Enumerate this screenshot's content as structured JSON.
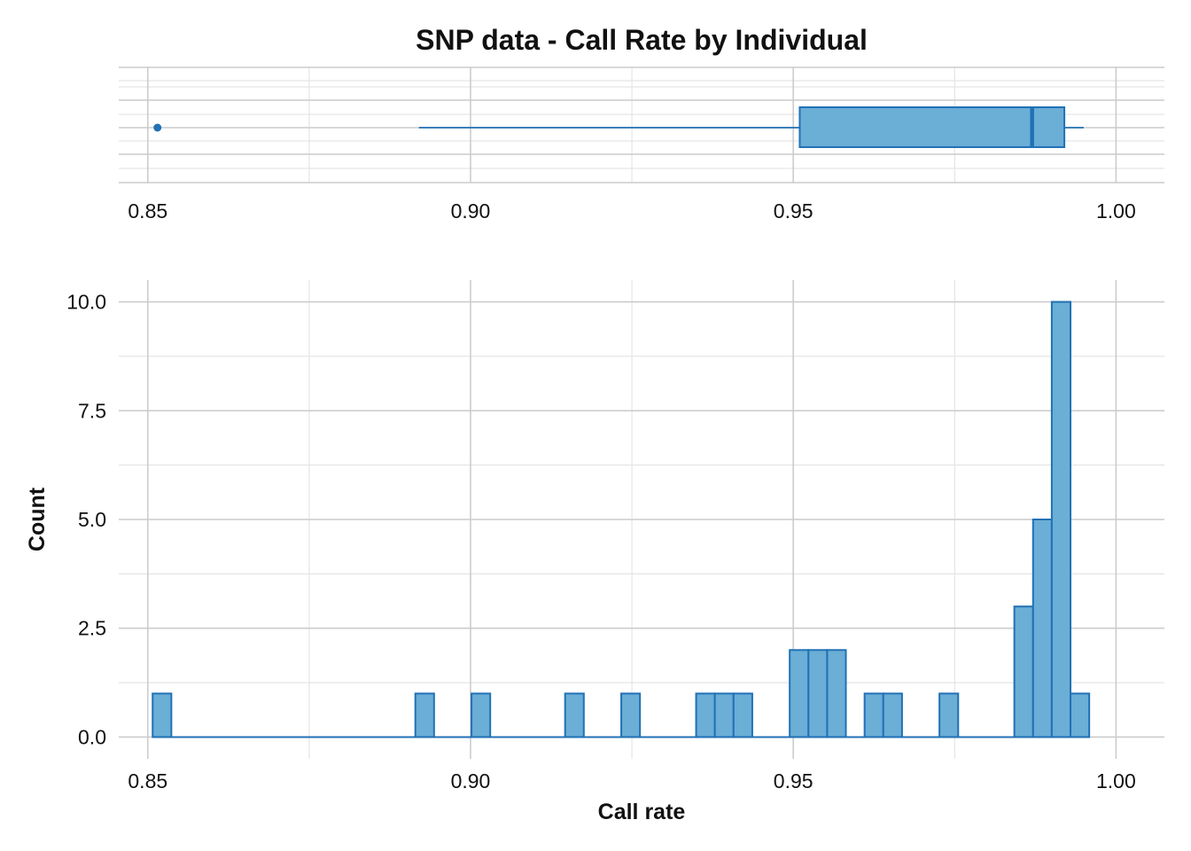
{
  "title": "SNP data - Call Rate by Individual",
  "colors": {
    "fill": "#6baed6",
    "stroke": "#2171b5",
    "grid_major": "#cccccc",
    "grid_minor": "#e5e5e5"
  },
  "chart_data": [
    {
      "type": "boxplot",
      "orientation": "horizontal",
      "x_ticks": [
        "0.85",
        "0.90",
        "0.95",
        "1.00"
      ],
      "xlim": [
        0.8455,
        1.0075
      ],
      "grid": true,
      "stats": {
        "whisker_low": 0.892,
        "q1": 0.951,
        "median": 0.987,
        "q3": 0.992,
        "whisker_high": 0.995
      },
      "outliers": [
        0.8515
      ]
    },
    {
      "type": "bar",
      "subtype": "histogram",
      "xlabel": "Call rate",
      "ylabel": "Count",
      "xlim": [
        0.8455,
        1.0075
      ],
      "ylim": [
        -0.5,
        10.5
      ],
      "x_ticks": [
        "0.85",
        "0.90",
        "0.95",
        "1.00"
      ],
      "y_ticks": [
        "0.0",
        "2.5",
        "5.0",
        "7.5",
        "10.0"
      ],
      "grid": true,
      "bin_width": 0.0029,
      "bins": [
        {
          "x": 0.8522,
          "count": 1
        },
        {
          "x": 0.8929,
          "count": 1
        },
        {
          "x": 0.9016,
          "count": 1
        },
        {
          "x": 0.9161,
          "count": 1
        },
        {
          "x": 0.9248,
          "count": 1
        },
        {
          "x": 0.9364,
          "count": 1
        },
        {
          "x": 0.9393,
          "count": 1
        },
        {
          "x": 0.9422,
          "count": 1
        },
        {
          "x": 0.9509,
          "count": 2
        },
        {
          "x": 0.9538,
          "count": 2
        },
        {
          "x": 0.9567,
          "count": 2
        },
        {
          "x": 0.9625,
          "count": 1
        },
        {
          "x": 0.9654,
          "count": 1
        },
        {
          "x": 0.9741,
          "count": 1
        },
        {
          "x": 0.9857,
          "count": 3
        },
        {
          "x": 0.9886,
          "count": 5
        },
        {
          "x": 0.9915,
          "count": 10
        },
        {
          "x": 0.9944,
          "count": 1
        }
      ],
      "x_min": 0.8508,
      "x_max": 0.9959
    }
  ]
}
